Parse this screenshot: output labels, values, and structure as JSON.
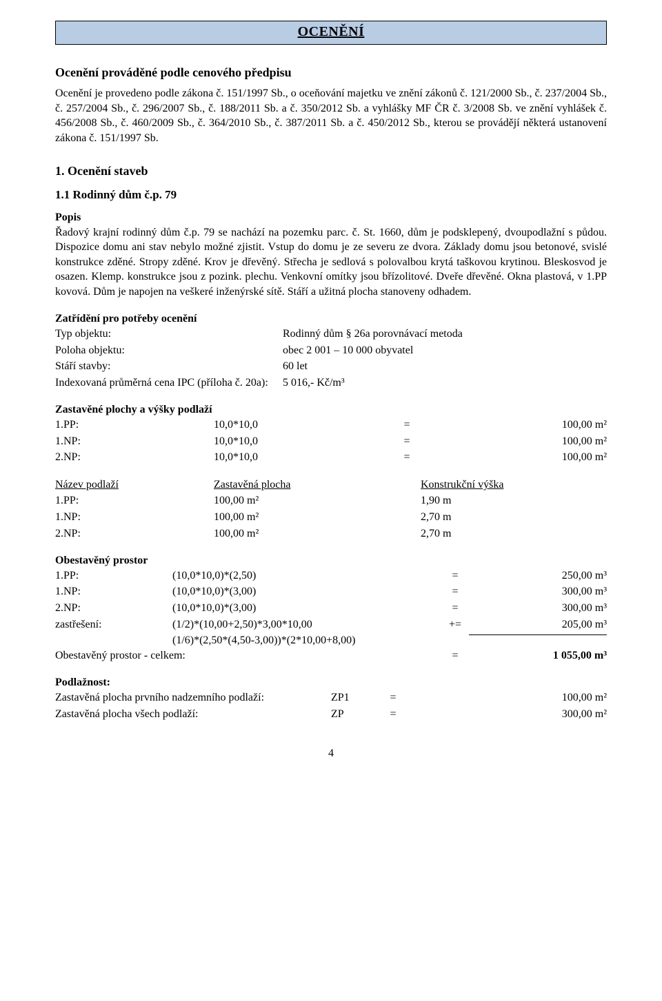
{
  "banner": {
    "title": "OCENĚNÍ"
  },
  "intro": {
    "heading": "Ocenění prováděné podle cenového předpisu",
    "para1": "Ocenění je provedeno podle zákona č. 151/1997 Sb., o oceňování majetku ve znění zákonů č. 121/2000 Sb., č. 237/2004 Sb., č. 257/2004 Sb., č. 296/2007 Sb., č. 188/2011 Sb. a č. 350/2012 Sb. a vyhlášky MF ČR č. 3/2008 Sb. ve znění vyhlášek č. 456/2008 Sb., č. 460/2009 Sb., č. 364/2010 Sb., č. 387/2011 Sb. a č. 450/2012 Sb., kterou se provádějí některá ustanovení zákona č. 151/1997 Sb."
  },
  "sec1": {
    "heading": "1. Ocenění staveb",
    "sub": "1.1 Rodinný dům č.p. 79",
    "popis_label": "Popis",
    "popis_text": "Řadový krajní rodinný dům č.p. 79 se nachází na pozemku parc. č. St. 1660, dům je podsklepený, dvoupodlažní s půdou. Dispozice domu ani stav nebylo možné zjistit. Vstup do domu je ze severu ze dvora. Základy domu jsou betonové, svislé konstrukce zděné. Stropy zděné. Krov je dřevěný. Střecha je sedlová s polovalbou krytá taškovou krytinou. Bleskosvod je osazen. Klemp. konstrukce jsou z pozink. plechu. Venkovní omítky jsou břízolitové. Dveře dřevěné. Okna plastová, v 1.PP kovová. Dům je napojen na veškeré inženýrské sítě. Stáří a užitná plocha stanoveny odhadem."
  },
  "zatrideni": {
    "heading": "Zatřídění pro potřeby ocenění",
    "rows": [
      [
        "Typ objektu:",
        "Rodinný dům § 26a porovnávací metoda"
      ],
      [
        "Poloha objektu:",
        "obec 2 001 – 10 000 obyvatel"
      ],
      [
        "Stáří stavby:",
        "60 let"
      ],
      [
        "Indexovaná průměrná cena IPC (příloha č. 20a):",
        "5 016,- Kč/m³"
      ]
    ]
  },
  "zastavene": {
    "heading": "Zastavěné plochy a výšky podlaží",
    "rows": [
      [
        "1.PP:",
        "10,0*10,0",
        "=",
        "100,00 m²"
      ],
      [
        "1.NP:",
        "10,0*10,0",
        "=",
        "100,00 m²"
      ],
      [
        "2.NP:",
        "10,0*10,0",
        "=",
        "100,00 m²"
      ]
    ]
  },
  "nazev": {
    "cols": [
      "Název podlaží",
      "Zastavěná plocha",
      "Konstrukční výška"
    ],
    "rows": [
      [
        "1.PP:",
        "100,00 m²",
        "1,90 m"
      ],
      [
        "1.NP:",
        "100,00 m²",
        "2,70 m"
      ],
      [
        "2.NP:",
        "100,00 m²",
        "2,70 m"
      ]
    ]
  },
  "obest": {
    "heading": "Obestavěný prostor",
    "rows": [
      [
        "1.PP:",
        "(10,0*10,0)*(2,50)",
        "=",
        "250,00 m³"
      ],
      [
        "1.NP:",
        "(10,0*10,0)*(3,00)",
        "=",
        "300,00 m³"
      ],
      [
        "2.NP:",
        "(10,0*10,0)*(3,00)",
        "=",
        "300,00 m³"
      ],
      [
        "zastřešení:",
        "(1/2)*(10,00+2,50)*3,00*10,00",
        "+=",
        "205,00 m³"
      ]
    ],
    "extra": "(1/6)*(2,50*(4,50-3,00))*(2*10,00+8,00)",
    "sum_label": "Obestavěný prostor - celkem:",
    "sum_eq": "=",
    "sum_val": "1 055,00 m³"
  },
  "podlaznost": {
    "heading": "Podlažnost:",
    "rows": [
      [
        "Zastavěná plocha prvního nadzemního podlaží:",
        "ZP1",
        "=",
        "100,00 m²"
      ],
      [
        "Zastavěná plocha všech podlaží:",
        "ZP",
        "=",
        "300,00 m²"
      ]
    ]
  },
  "pagenum": "4"
}
